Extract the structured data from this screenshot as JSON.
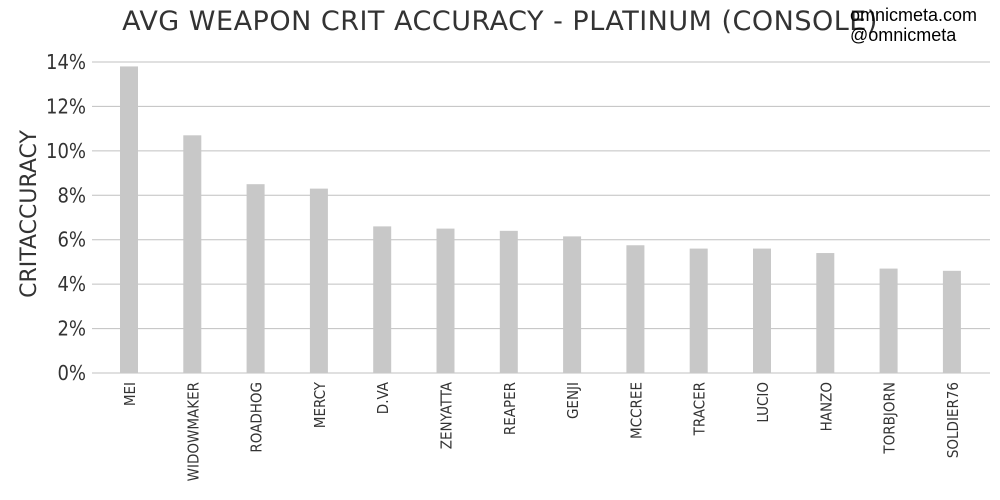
{
  "credits": {
    "site": "omnicmeta.com",
    "handle": "@omnicmeta"
  },
  "chart_data": {
    "type": "bar",
    "title": "AVG WEAPON CRIT ACCURACY - PLATINUM (CONSOLE)",
    "xlabel": "",
    "ylabel": "CRITACCURACY",
    "categories": [
      "MEI",
      "WIDOWMAKER",
      "ROADHOG",
      "MERCY",
      "D.VA",
      "ZENYATTA",
      "REAPER",
      "GENJI",
      "MCCREE",
      "TRACER",
      "LUCIO",
      "HANZO",
      "TORBJORN",
      "SOLDIER76"
    ],
    "values": [
      13.8,
      10.7,
      8.5,
      8.3,
      6.6,
      6.5,
      6.4,
      6.15,
      5.75,
      5.6,
      5.6,
      5.4,
      4.7,
      4.6
    ],
    "ylim": [
      0,
      14
    ],
    "yticks": [
      0,
      2,
      4,
      6,
      8,
      10,
      12,
      14
    ],
    "ytick_labels": [
      "0%",
      "2%",
      "4%",
      "6%",
      "8%",
      "10%",
      "12%",
      "14%"
    ],
    "grid": true,
    "bar_color": "#c8c8c8",
    "grid_color": "#c0c0c0",
    "text_color": "#333333"
  }
}
